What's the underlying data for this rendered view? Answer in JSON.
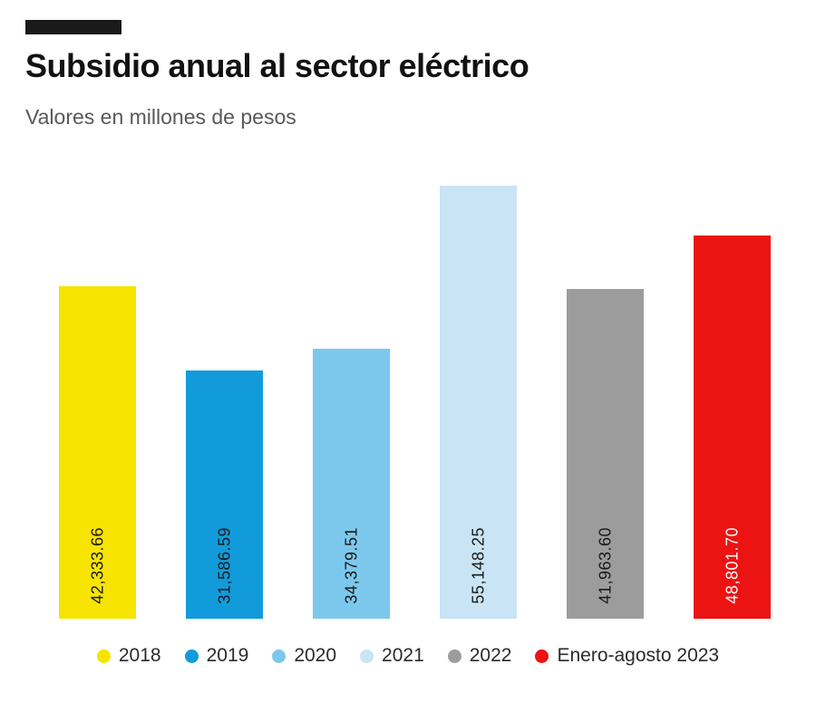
{
  "header": {
    "title": "Subsidio anual al sector eléctrico",
    "subtitle": "Valores en millones de pesos"
  },
  "chart_data": {
    "type": "bar",
    "title": "Subsidio anual al sector eléctrico",
    "subtitle": "Valores en millones de pesos",
    "categories": [
      "2018",
      "2019",
      "2020",
      "2021",
      "2022",
      "Enero-agosto 2023"
    ],
    "values": [
      42333.66,
      31586.59,
      34379.51,
      55148.25,
      41963.6,
      48801.7
    ],
    "value_labels": [
      "42,333.66",
      "31,586.59",
      "34,379.51",
      "55,148.25",
      "41,963.60",
      "48,801.70"
    ],
    "colors": [
      "#f7e400",
      "#119bdb",
      "#7cc8ed",
      "#c8e4f5",
      "#9c9c9c",
      "#ec1313"
    ],
    "label_colors": [
      "#1a1a1a",
      "#1a1a1a",
      "#1a1a1a",
      "#1a1a1a",
      "#1a1a1a",
      "#ffffff"
    ],
    "xlabel": "",
    "ylabel": "",
    "ylim": [
      0,
      55148.25
    ],
    "grid": false,
    "legend_position": "bottom"
  },
  "legend": {
    "items": [
      {
        "label": "2018",
        "color": "#f7e400"
      },
      {
        "label": "2019",
        "color": "#119bdb"
      },
      {
        "label": "2020",
        "color": "#7cc8ed"
      },
      {
        "label": "2021",
        "color": "#c8e4f5"
      },
      {
        "label": "2022",
        "color": "#9c9c9c"
      },
      {
        "label": "Enero-agosto 2023",
        "color": "#ec1313"
      }
    ]
  }
}
